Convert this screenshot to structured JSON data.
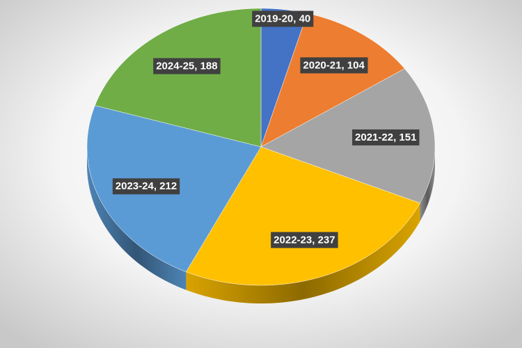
{
  "chart_data": {
    "type": "pie",
    "categories": [
      "2019-20",
      "2020-21",
      "2021-22",
      "2022-23",
      "2023-24",
      "2024-25"
    ],
    "values": [
      40,
      104,
      151,
      237,
      212,
      188
    ],
    "value_labels": [
      "2019-20, 40",
      "2020-21, 104",
      "2021-22, 151",
      "2022-23, 237",
      "2023-24, 212",
      "2024-25, 188"
    ],
    "colors": [
      "#4472c4",
      "#ed7d31",
      "#a5a5a5",
      "#ffc000",
      "#5b9bd5",
      "#70ad47"
    ]
  }
}
